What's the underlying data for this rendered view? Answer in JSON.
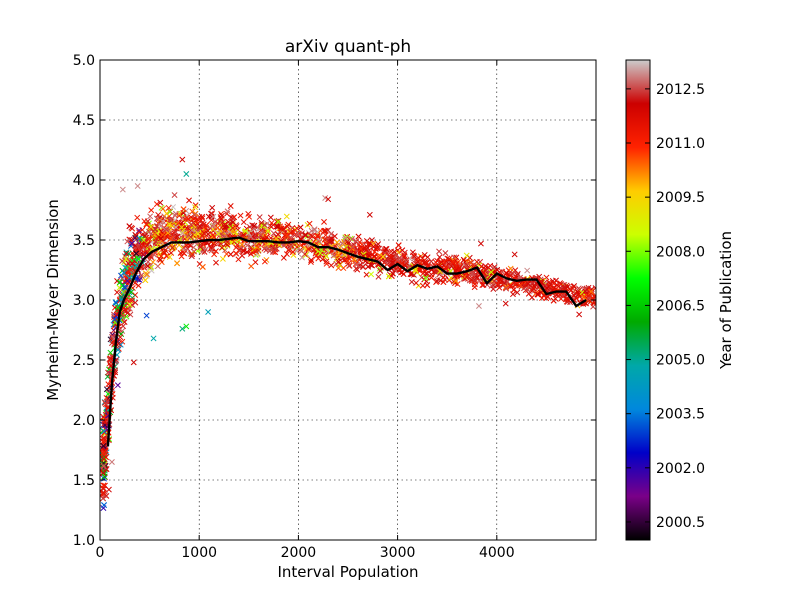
{
  "chart_data": {
    "type": "scatter",
    "title": "arXiv quant-ph",
    "xlabel": "Interval Population",
    "ylabel": "Myrheim-Meyer Dimension",
    "xlim": [
      0,
      5000
    ],
    "ylim": [
      1.0,
      5.0
    ],
    "grid": true,
    "marker": "x",
    "xticks": [
      {
        "value": 0,
        "label": "0"
      },
      {
        "value": 1000,
        "label": "1000"
      },
      {
        "value": 2000,
        "label": "2000"
      },
      {
        "value": 3000,
        "label": "3000"
      },
      {
        "value": 4000,
        "label": "4000"
      }
    ],
    "yticks": [
      {
        "value": 1.0,
        "label": "1.0"
      },
      {
        "value": 1.5,
        "label": "1.5"
      },
      {
        "value": 2.0,
        "label": "2.0"
      },
      {
        "value": 2.5,
        "label": "2.5"
      },
      {
        "value": 3.0,
        "label": "3.0"
      },
      {
        "value": 3.5,
        "label": "3.5"
      },
      {
        "value": 4.0,
        "label": "4.0"
      },
      {
        "value": 4.5,
        "label": "4.5"
      },
      {
        "value": 5.0,
        "label": "5.0"
      }
    ],
    "mean_line": {
      "name": "mean",
      "color": "#000000",
      "x": [
        80,
        120,
        160,
        200,
        240,
        300,
        360,
        440,
        520,
        620,
        720,
        800,
        900,
        1000,
        1100,
        1200,
        1300,
        1400,
        1500,
        1600,
        1700,
        1800,
        1900,
        2000,
        2100,
        2200,
        2300,
        2400,
        2500,
        2600,
        2700,
        2800,
        2900,
        3000,
        3100,
        3200,
        3300,
        3400,
        3500,
        3600,
        3700,
        3800,
        3900,
        4000,
        4100,
        4200,
        4300,
        4400,
        4500,
        4600,
        4700,
        4800,
        4900
      ],
      "y": [
        1.78,
        2.3,
        2.65,
        2.9,
        3.0,
        3.1,
        3.22,
        3.34,
        3.4,
        3.44,
        3.48,
        3.48,
        3.48,
        3.49,
        3.5,
        3.5,
        3.51,
        3.52,
        3.49,
        3.49,
        3.49,
        3.48,
        3.48,
        3.49,
        3.48,
        3.44,
        3.44,
        3.42,
        3.39,
        3.36,
        3.34,
        3.32,
        3.25,
        3.3,
        3.24,
        3.29,
        3.26,
        3.28,
        3.22,
        3.22,
        3.24,
        3.27,
        3.14,
        3.22,
        3.18,
        3.16,
        3.17,
        3.17,
        3.05,
        3.07,
        3.07,
        2.95,
        3.0
      ]
    },
    "scatter": {
      "marker": "x",
      "color_by": "Year of Publication",
      "envelope_description": "dense cloud of publications; values rise steeply below ~400 then plateau near 3.5 and slowly decline to ~3.0 at 5000",
      "envelope": [
        {
          "x": 30,
          "y_low": 1.05,
          "y_high": 2.2
        },
        {
          "x": 60,
          "y_low": 1.1,
          "y_high": 2.6
        },
        {
          "x": 100,
          "y_low": 1.5,
          "y_high": 3.0
        },
        {
          "x": 150,
          "y_low": 2.0,
          "y_high": 3.3
        },
        {
          "x": 200,
          "y_low": 2.3,
          "y_high": 3.6
        },
        {
          "x": 300,
          "y_low": 2.6,
          "y_high": 3.85
        },
        {
          "x": 400,
          "y_low": 2.9,
          "y_high": 3.9
        },
        {
          "x": 600,
          "y_low": 3.1,
          "y_high": 3.95
        },
        {
          "x": 800,
          "y_low": 3.2,
          "y_high": 3.95
        },
        {
          "x": 1200,
          "y_low": 3.2,
          "y_high": 3.9
        },
        {
          "x": 1600,
          "y_low": 3.2,
          "y_high": 3.8
        },
        {
          "x": 2000,
          "y_low": 3.25,
          "y_high": 3.75
        },
        {
          "x": 2400,
          "y_low": 3.15,
          "y_high": 3.7
        },
        {
          "x": 2800,
          "y_low": 3.1,
          "y_high": 3.6
        },
        {
          "x": 3200,
          "y_low": 3.05,
          "y_high": 3.5
        },
        {
          "x": 3600,
          "y_low": 3.05,
          "y_high": 3.45
        },
        {
          "x": 4000,
          "y_low": 3.0,
          "y_high": 3.4
        },
        {
          "x": 4400,
          "y_low": 2.95,
          "y_high": 3.3
        },
        {
          "x": 4800,
          "y_low": 2.9,
          "y_high": 3.2
        },
        {
          "x": 5000,
          "y_low": 2.9,
          "y_high": 3.15
        }
      ],
      "outliers": [
        {
          "x": 830,
          "y": 4.17,
          "year": 2012.0
        },
        {
          "x": 870,
          "y": 4.05,
          "year": 2005.0
        },
        {
          "x": 1090,
          "y": 2.9,
          "year": 2004.5
        },
        {
          "x": 870,
          "y": 2.78,
          "year": 2007.0
        },
        {
          "x": 830,
          "y": 2.76,
          "year": 2005.2
        },
        {
          "x": 540,
          "y": 2.68,
          "year": 2004.8
        },
        {
          "x": 470,
          "y": 2.87,
          "year": 2003.0
        },
        {
          "x": 340,
          "y": 2.48,
          "year": 2012.0
        },
        {
          "x": 180,
          "y": 2.29,
          "year": 2001.5
        },
        {
          "x": 90,
          "y": 1.42,
          "year": 2012.0
        },
        {
          "x": 120,
          "y": 1.65,
          "year": 2012.8
        },
        {
          "x": 380,
          "y": 3.95,
          "year": 2012.9
        },
        {
          "x": 230,
          "y": 3.92,
          "year": 2012.9
        },
        {
          "x": 2270,
          "y": 3.85,
          "year": 2012.9
        },
        {
          "x": 2300,
          "y": 3.84,
          "year": 2012.0
        },
        {
          "x": 2720,
          "y": 3.71,
          "year": 2012.0
        },
        {
          "x": 3840,
          "y": 3.47,
          "year": 2012.0
        },
        {
          "x": 4180,
          "y": 3.38,
          "year": 2012.0
        },
        {
          "x": 3820,
          "y": 2.95,
          "year": 2012.9
        },
        {
          "x": 4090,
          "y": 2.97,
          "year": 2012.0
        },
        {
          "x": 4830,
          "y": 2.88,
          "year": 2012.0
        }
      ]
    },
    "colorbar": {
      "label": "Year of Publication",
      "min": 2000.0,
      "max": 2013.3,
      "ticks": [
        {
          "value": 2000.5,
          "label": "2000.5"
        },
        {
          "value": 2002.0,
          "label": "2002.0"
        },
        {
          "value": 2003.5,
          "label": "2003.5"
        },
        {
          "value": 2005.0,
          "label": "2005.0"
        },
        {
          "value": 2006.5,
          "label": "2006.5"
        },
        {
          "value": 2008.0,
          "label": "2008.0"
        },
        {
          "value": 2009.5,
          "label": "2009.5"
        },
        {
          "value": 2011.0,
          "label": "2011.0"
        },
        {
          "value": 2012.5,
          "label": "2012.5"
        }
      ],
      "colormap": "nipy_spectral",
      "stops": [
        "#000000",
        "#7a0088",
        "#0000c8",
        "#0088dd",
        "#00a8a8",
        "#00aa00",
        "#00ff00",
        "#ccff00",
        "#ffcc00",
        "#ff2200",
        "#cc0000",
        "#cccccc"
      ]
    }
  }
}
